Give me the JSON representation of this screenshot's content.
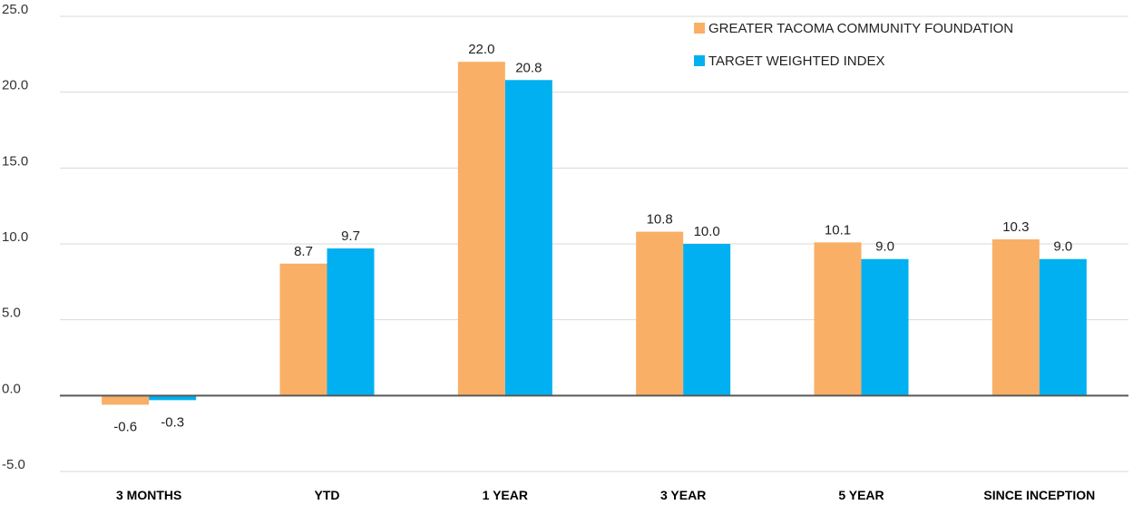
{
  "chart_data": {
    "type": "bar",
    "categories": [
      "3 MONTHS",
      "YTD",
      "1 YEAR",
      "3 YEAR",
      "5 YEAR",
      "SINCE INCEPTION"
    ],
    "series": [
      {
        "name": "GREATER TACOMA COMMUNITY FOUNDATION",
        "color": "#F9AF66",
        "values": [
          -0.6,
          8.7,
          22.0,
          10.8,
          10.1,
          10.3
        ],
        "labels": [
          "-0.6",
          "8.7",
          "22.0",
          "10.8",
          "10.1",
          "10.3"
        ]
      },
      {
        "name": "TARGET WEIGHTED INDEX",
        "color": "#00B0F0",
        "values": [
          -0.3,
          9.7,
          20.8,
          10.0,
          9.0,
          9.0
        ],
        "labels": [
          "-0.3",
          "9.7",
          "20.8",
          "10.0",
          "9.0",
          "9.0"
        ]
      }
    ],
    "yticks": [
      25,
      20,
      15,
      10,
      5,
      0,
      -5
    ],
    "ytick_labels": [
      "25.0",
      "20.0",
      "15.0",
      "10.0",
      "5.0",
      "0.0",
      "-5.0"
    ],
    "ylim": [
      -5,
      25
    ],
    "grid": true,
    "legend_position": "top-right"
  }
}
